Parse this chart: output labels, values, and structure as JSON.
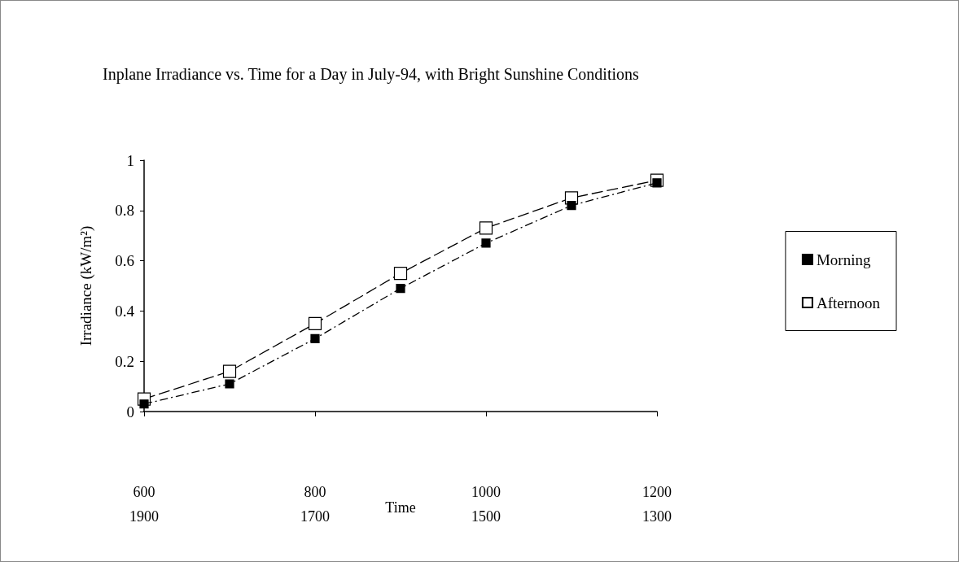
{
  "chart_data": {
    "type": "line",
    "title": "Inplane Irradiance vs. Time for a Day in July-94, with Bright Sunshine Conditions",
    "xlabel": "Time",
    "ylabel": "Irradiance (kW/m²)",
    "x": [
      600,
      700,
      800,
      900,
      1000,
      1100,
      1200
    ],
    "series": [
      {
        "name": "Morning",
        "color": "#000000",
        "values": [
          0.03,
          0.11,
          0.29,
          0.49,
          0.67,
          0.82,
          0.91
        ]
      },
      {
        "name": "Afternoon",
        "color": "#ffffff",
        "values": [
          0.05,
          0.16,
          0.35,
          0.55,
          0.73,
          0.85,
          0.92
        ]
      }
    ],
    "xlim": [
      600,
      1200
    ],
    "xticks": [
      600,
      800,
      1000,
      1200
    ],
    "x2lim": [
      1900,
      1300
    ],
    "x2ticks": [
      1900,
      1700,
      1500,
      1300
    ],
    "ylim": [
      0,
      1
    ],
    "yticks": [
      0,
      0.2,
      0.4,
      0.6,
      0.8,
      1
    ],
    "grid": false,
    "legend": "right",
    "marker": "square",
    "line_style": "dashed"
  }
}
